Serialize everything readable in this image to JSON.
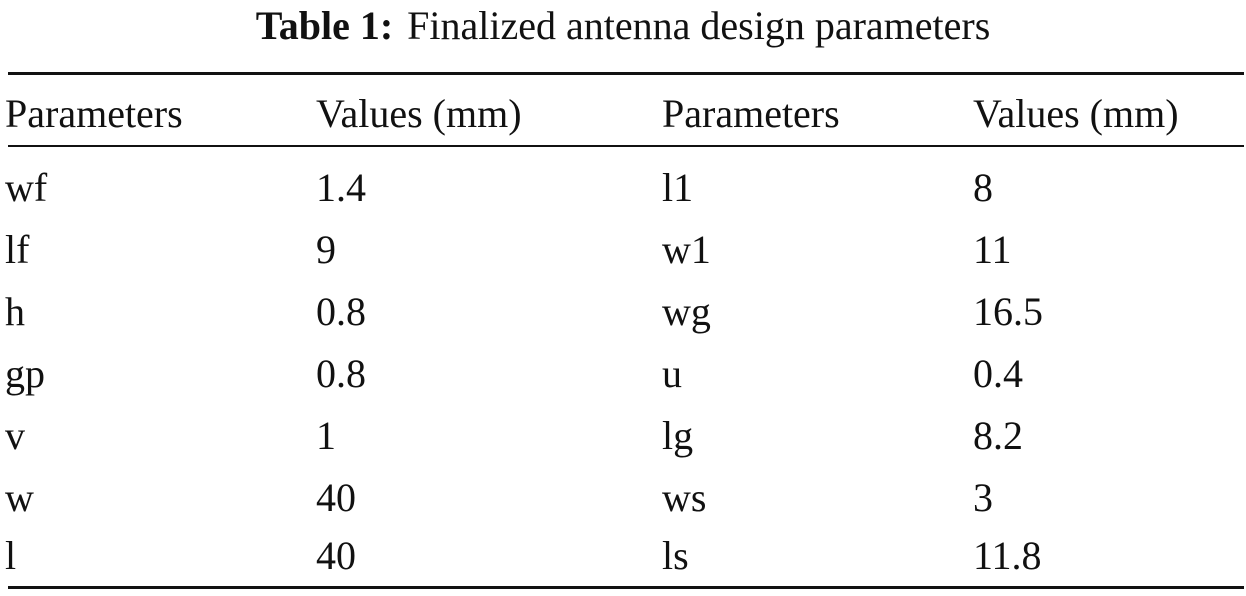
{
  "caption": {
    "label": "Table 1:",
    "text": "Finalized antenna design parameters"
  },
  "table": {
    "headers": [
      "Parameters",
      "Values (mm)",
      "Parameters",
      "Values (mm)"
    ],
    "rows": [
      [
        "wf",
        "1.4",
        "l1",
        "8"
      ],
      [
        "lf",
        "9",
        "w1",
        "11"
      ],
      [
        "h",
        "0.8",
        "wg",
        "16.5"
      ],
      [
        "gp",
        "0.8",
        "u",
        "0.4"
      ],
      [
        "v",
        "1",
        "lg",
        "8.2"
      ],
      [
        "w",
        "40",
        "ws",
        "3"
      ],
      [
        "l",
        "40",
        "ls",
        "11.8"
      ]
    ]
  }
}
